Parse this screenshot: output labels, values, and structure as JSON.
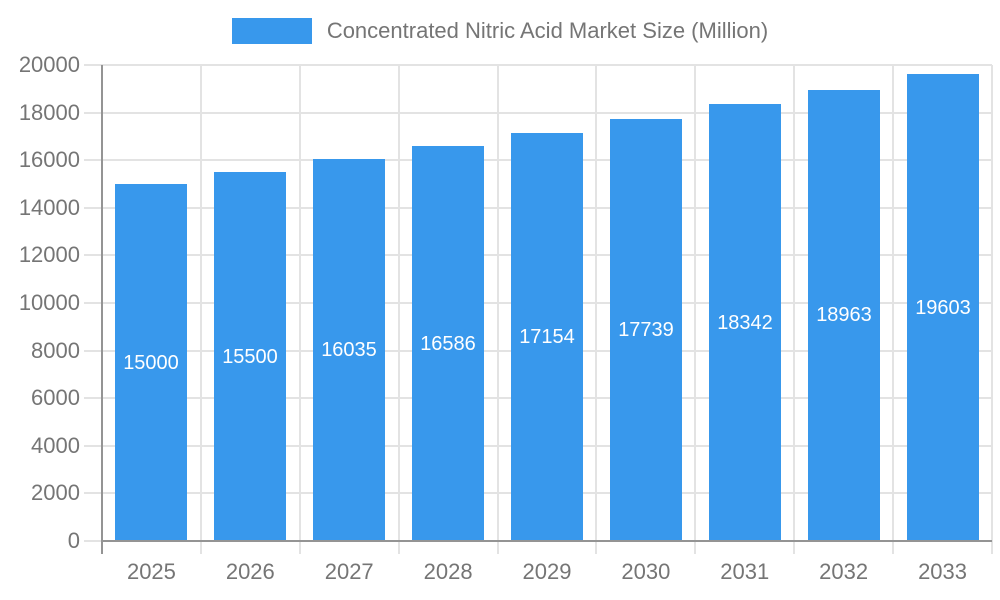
{
  "legend": {
    "label": "Concentrated Nitric Acid Market Size (Million)"
  },
  "chart_data": {
    "type": "bar",
    "title": "",
    "series_name": "Concentrated Nitric Acid Market Size (Million)",
    "categories": [
      "2025",
      "2026",
      "2027",
      "2028",
      "2029",
      "2030",
      "2031",
      "2032",
      "2033"
    ],
    "values": [
      15000,
      15500,
      16035,
      16586,
      17154,
      17739,
      18342,
      18963,
      19603
    ],
    "value_labels": [
      "15000",
      "15500",
      "16035",
      "16586",
      "17154",
      "17739",
      "18342",
      "18963",
      "19603"
    ],
    "xlabel": "",
    "ylabel": "",
    "ylim": [
      0,
      20000
    ],
    "ytick_interval": 2000,
    "yticks": [
      0,
      2000,
      4000,
      6000,
      8000,
      10000,
      12000,
      14000,
      16000,
      18000,
      20000
    ],
    "grid": true,
    "legend_position": "top"
  },
  "colors": {
    "bar": "#3898EC",
    "axis_line": "#949494",
    "gridline": "#E3E3E3",
    "tick_label": "#757575",
    "value_label": "#FFFFFF",
    "background": "#FFFFFF"
  }
}
